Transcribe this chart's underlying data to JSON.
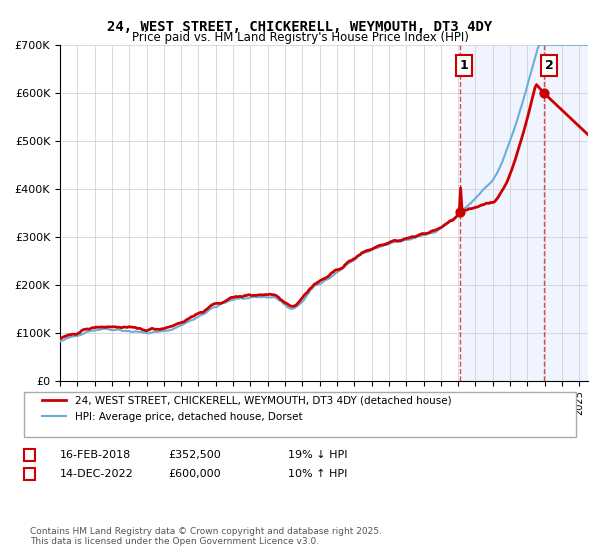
{
  "title": "24, WEST STREET, CHICKERELL, WEYMOUTH, DT3 4DY",
  "subtitle": "Price paid vs. HM Land Registry's House Price Index (HPI)",
  "legend_line1": "24, WEST STREET, CHICKERELL, WEYMOUTH, DT3 4DY (detached house)",
  "legend_line2": "HPI: Average price, detached house, Dorset",
  "annotation1_label": "1",
  "annotation1_date": "16-FEB-2018",
  "annotation1_price": "£352,500",
  "annotation1_hpi": "19% ↓ HPI",
  "annotation2_label": "2",
  "annotation2_date": "14-DEC-2022",
  "annotation2_price": "£600,000",
  "annotation2_hpi": "10% ↑ HPI",
  "footer": "Contains HM Land Registry data © Crown copyright and database right 2025.\nThis data is licensed under the Open Government Licence v3.0.",
  "hpi_color": "#6baed6",
  "price_color": "#cc0000",
  "sale1_x": 2018.12,
  "sale1_y": 352500,
  "sale2_x": 2022.95,
  "sale2_y": 600000,
  "ylim": [
    0,
    700000
  ],
  "xlim": [
    1995,
    2025.5
  ],
  "shaded_start": 2018.12,
  "shaded_end": 2025.5,
  "background_color": "#f0f4ff"
}
